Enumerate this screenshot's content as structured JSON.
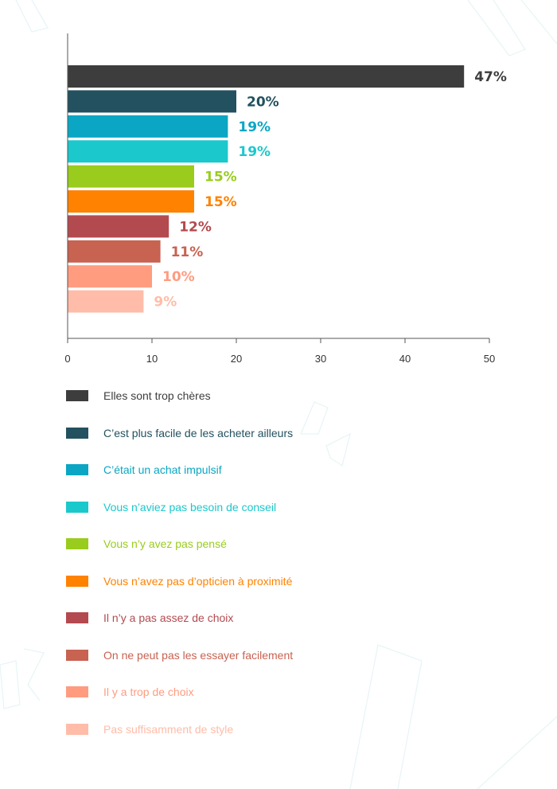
{
  "chart_data": {
    "type": "bar",
    "orientation": "horizontal",
    "categories": [
      "Elles sont trop chères",
      "C’est plus facile de les acheter ailleurs",
      "C’était un achat impulsif",
      "Vous n’aviez pas besoin de conseil",
      "Vous n’y avez pas pensé",
      "Vous n’avez pas d’opticien à proximité",
      "Il n’y a pas assez de choix",
      "On ne peut pas les essayer facilement",
      "Il y a trop de choix",
      "Pas suffisamment de style"
    ],
    "values": [
      47,
      20,
      19,
      19,
      15,
      15,
      12,
      11,
      10,
      9
    ],
    "value_labels": [
      "47%",
      "20%",
      "19%",
      "19%",
      "15%",
      "15%",
      "12%",
      "11%",
      "10%",
      "9%"
    ],
    "colors": [
      "#3d3d3d",
      "#23515f",
      "#0aa6c3",
      "#1bc8cc",
      "#99cc1c",
      "#ff8200",
      "#b34a4f",
      "#c86251",
      "#ff9c80",
      "#ffbca8"
    ],
    "xlim": [
      0,
      50
    ],
    "xticks": [
      0,
      10,
      20,
      30,
      40,
      50
    ],
    "xtick_labels": [
      "0",
      "10",
      "20",
      "30",
      "40",
      "50"
    ],
    "legend_position": "bottom",
    "grid": false
  }
}
